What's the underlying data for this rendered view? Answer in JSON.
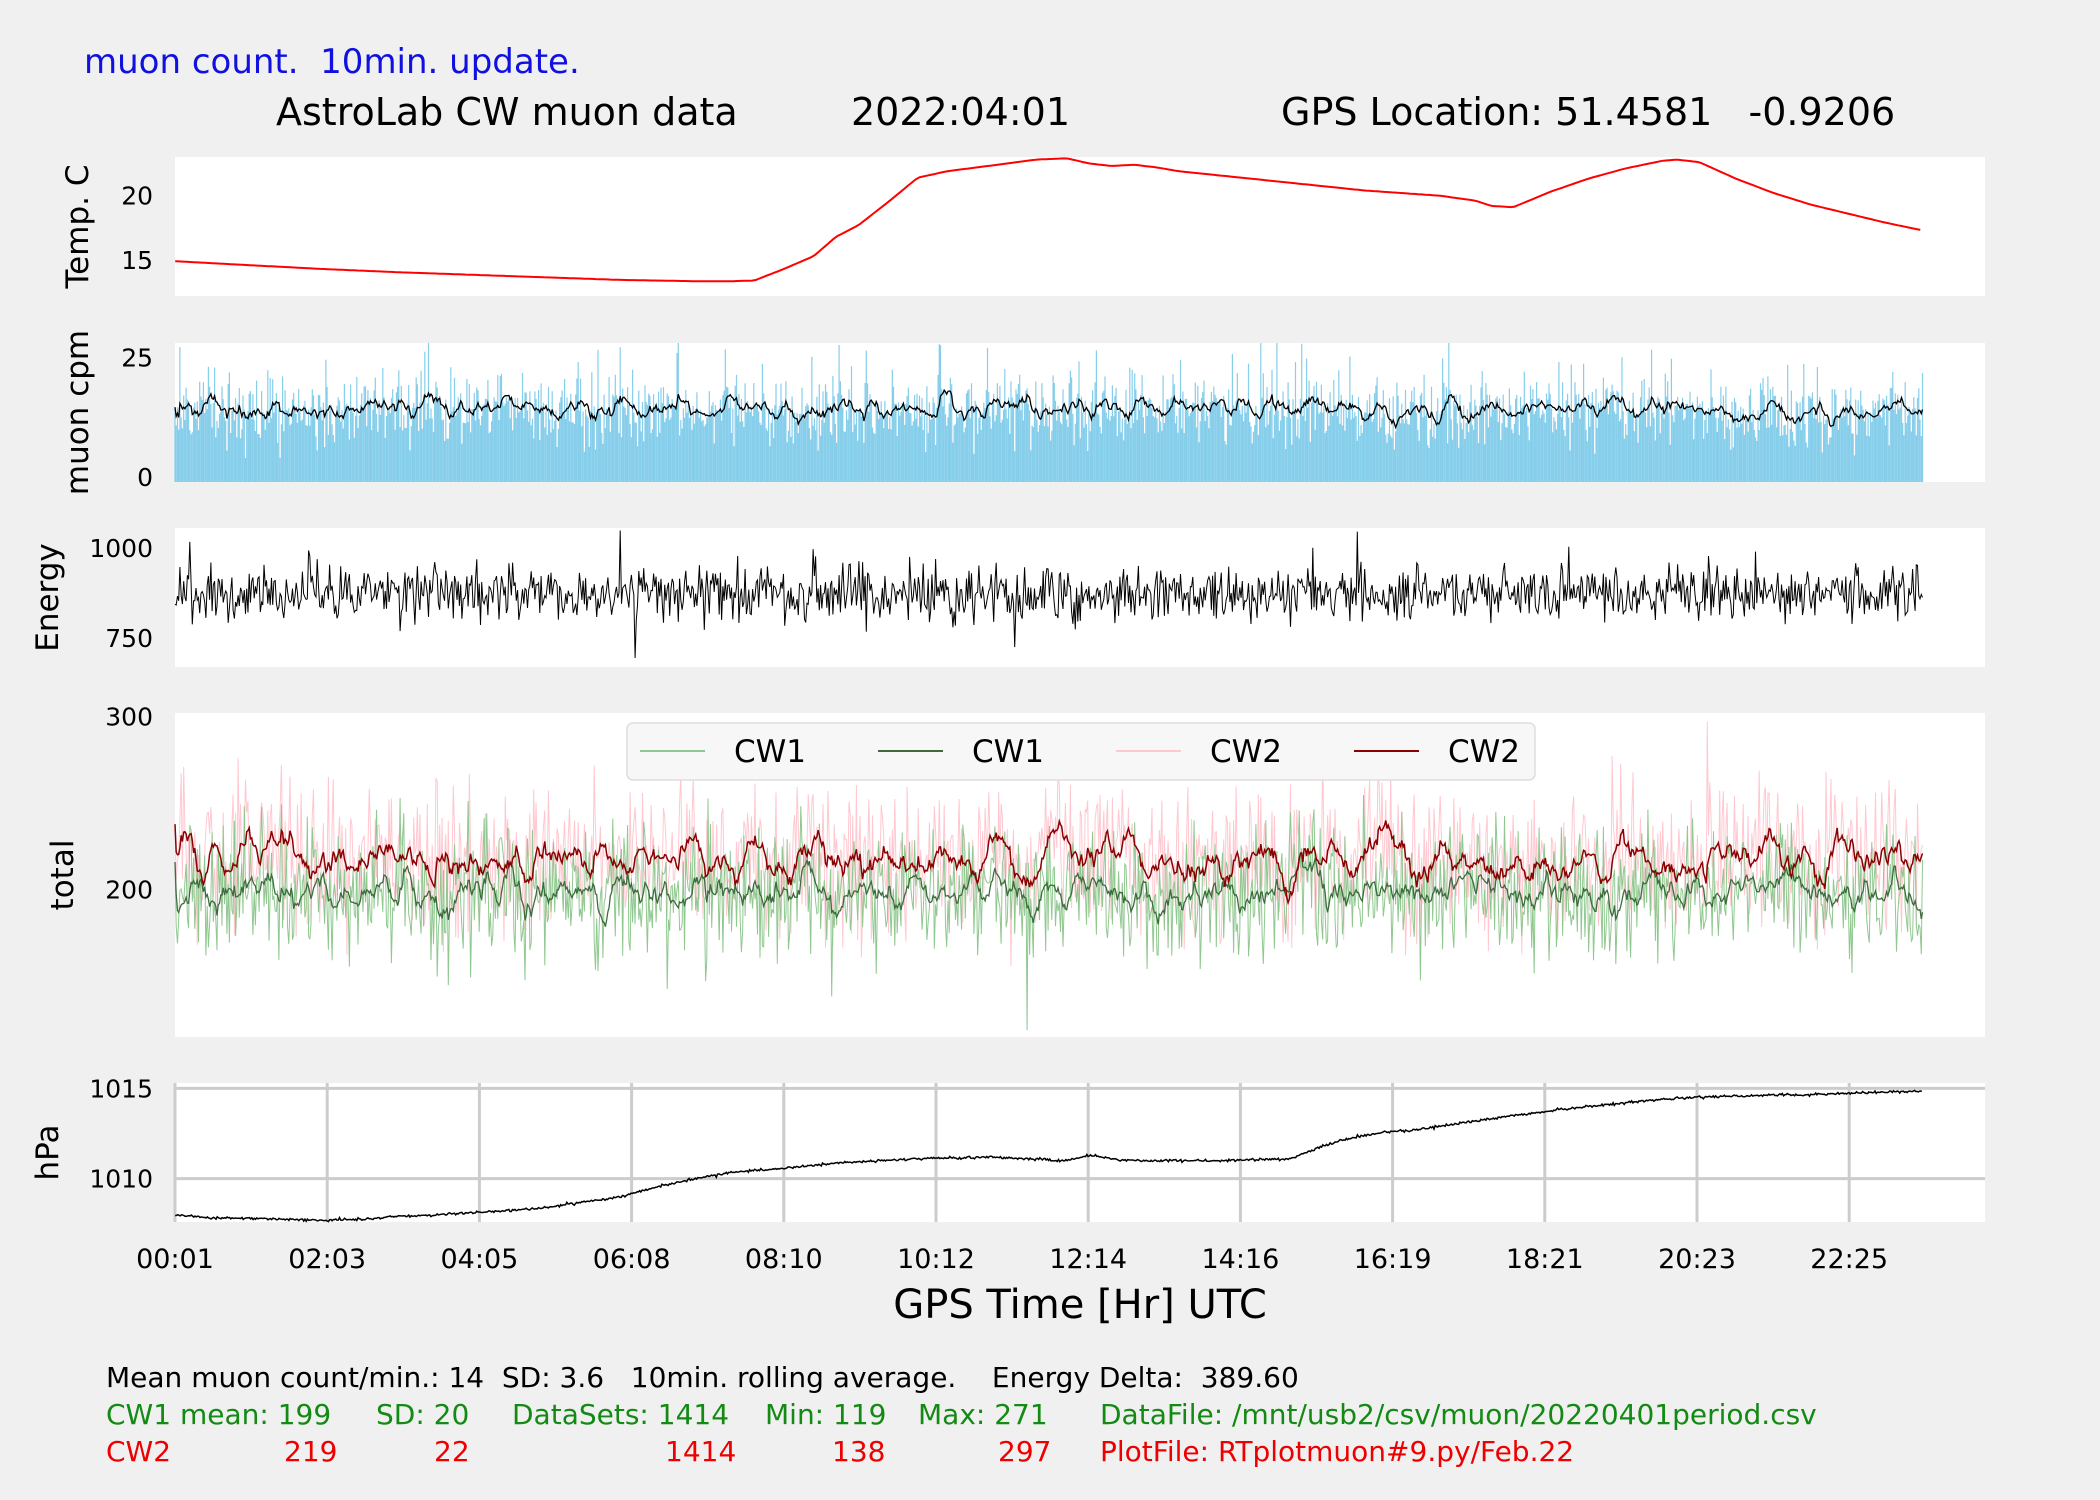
{
  "header": {
    "update_note": "muon count.  10min. update.",
    "title_source": "AstroLab CW muon data",
    "title_date": "2022:04:01",
    "title_gps": "GPS Location: 51.4581   -0.9206"
  },
  "xaxis": {
    "label": "GPS Time  [Hr] UTC",
    "ticks": [
      "00:01",
      "02:03",
      "04:05",
      "06:08",
      "08:10",
      "10:12",
      "12:14",
      "14:16",
      "16:19",
      "18:21",
      "20:23",
      "22:25"
    ]
  },
  "footer": {
    "summary": "Mean muon count/min.: 14  SD: 3.6   10min. rolling average.    Energy Delta:  389.60",
    "cw1": {
      "label": "CW1 mean: 199",
      "sd": "SD: 20",
      "datasets": "DataSets: 1414",
      "min": "Min: 119",
      "max": "Max: 271",
      "file": "DataFile: /mnt/usb2/csv/muon/20220401period.csv"
    },
    "cw2": {
      "label": "CW2",
      "mean": "219",
      "sd": "22",
      "datasets": "1414",
      "min": "138",
      "max": "297",
      "file": "PlotFile: RTplotmuon#9.py/Feb.22"
    }
  },
  "colors": {
    "temp": "#ff0000",
    "cpm_bars": "#87ceeb",
    "black": "#000000",
    "cw1_raw": "#90c890",
    "cw1_avg": "#3d6b3d",
    "cw2_raw": "#ffc8d0",
    "cw2_avg": "#8b0000",
    "header_blue": "#1010e0",
    "green": "#138a13",
    "red": "#ee0000"
  },
  "chart_data": [
    {
      "type": "line",
      "id": "temperature",
      "ylabel": "Temp. C",
      "yticks": [
        "15",
        "20"
      ],
      "ylim": [
        12.2,
        23
      ],
      "x_range_hours": [
        0.0167,
        23.5
      ],
      "series": [
        {
          "name": "temperature",
          "color": "#ff0000",
          "x": [
            0.02,
            1,
            2,
            3,
            4,
            5,
            6,
            6.5,
            7,
            7.5,
            7.8,
            8.2,
            8.6,
            8.9,
            9.2,
            9.6,
            10,
            10.4,
            10.8,
            11.2,
            11.6,
            12,
            12.3,
            12.6,
            12.9,
            13.2,
            13.5,
            14,
            15,
            16,
            17,
            17.5,
            17.7,
            18,
            18.5,
            19,
            19.5,
            20,
            20.2,
            20.5,
            21,
            21.5,
            22,
            22.5,
            23,
            23.5
          ],
          "y": [
            14.9,
            14.6,
            14.3,
            14.05,
            13.85,
            13.65,
            13.45,
            13.4,
            13.35,
            13.35,
            13.4,
            14.3,
            15.3,
            16.8,
            17.7,
            19.5,
            21.4,
            21.9,
            22.2,
            22.5,
            22.8,
            22.9,
            22.5,
            22.3,
            22.4,
            22.2,
            21.9,
            21.6,
            21.0,
            20.4,
            20.0,
            19.6,
            19.2,
            19.1,
            20.3,
            21.3,
            22.1,
            22.7,
            22.8,
            22.6,
            21.3,
            20.2,
            19.3,
            18.6,
            17.9,
            17.3
          ]
        }
      ]
    },
    {
      "type": "bar+line",
      "id": "muon_cpm",
      "ylabel": "muon cpm",
      "yticks": [
        "0",
        "25"
      ],
      "ylim": [
        -1,
        28
      ],
      "series": [
        {
          "name": "muon count/min",
          "color": "#87ceeb",
          "mean": 14,
          "sd": 3.6
        },
        {
          "name": "10min. rolling average",
          "color": "#000000",
          "mean": 14
        }
      ]
    },
    {
      "type": "line",
      "id": "energy",
      "ylabel": "Energy",
      "yticks": [
        "750",
        "1000"
      ],
      "ylim": [
        670,
        1055
      ],
      "series": [
        {
          "name": "energy",
          "color": "#000000",
          "mean": 875,
          "spikes": [
            {
              "x": 6.0,
              "y": 1048
            },
            {
              "x": 6.2,
              "y": 695
            },
            {
              "x": 15.9,
              "y": 1045
            },
            {
              "x": 11.3,
              "y": 725
            }
          ]
        }
      ]
    },
    {
      "type": "line",
      "id": "total",
      "ylabel": "total",
      "yticks": [
        "200",
        "300"
      ],
      "ylim": [
        115,
        302
      ],
      "series": [
        {
          "name": "CW1",
          "color": "#90c890",
          "mean": 199,
          "sd": 20,
          "min": 119,
          "max": 271
        },
        {
          "name": "CW1",
          "color": "#3d6b3d",
          "mean": 199
        },
        {
          "name": "CW2",
          "color": "#ffc8d0",
          "mean": 219,
          "sd": 22,
          "min": 138,
          "max": 297
        },
        {
          "name": "CW2",
          "color": "#8b0000",
          "mean": 219
        }
      ]
    },
    {
      "type": "line",
      "id": "pressure",
      "ylabel": "hPa",
      "yticks": [
        "1010",
        "1015"
      ],
      "ylim": [
        1007.6,
        1015.3
      ],
      "series": [
        {
          "name": "pressure",
          "color": "#000000",
          "x": [
            0.02,
            0.5,
            1,
            1.5,
            2,
            2.5,
            3,
            4,
            5,
            6,
            6.5,
            7,
            7.5,
            8,
            9,
            10,
            11,
            12,
            12.3,
            12.7,
            13,
            14,
            15,
            15.5,
            16,
            16.3,
            16.6,
            17,
            18,
            19,
            20,
            21,
            22,
            23,
            23.5
          ],
          "y": [
            1008.0,
            1007.85,
            1007.8,
            1007.75,
            1007.7,
            1007.75,
            1007.9,
            1008.1,
            1008.4,
            1009.0,
            1009.55,
            1010.0,
            1010.35,
            1010.5,
            1010.9,
            1011.1,
            1011.2,
            1011.0,
            1011.3,
            1011.05,
            1011.0,
            1011.0,
            1011.1,
            1011.9,
            1012.4,
            1012.6,
            1012.65,
            1012.9,
            1013.5,
            1014.0,
            1014.4,
            1014.6,
            1014.65,
            1014.8,
            1014.85
          ]
        }
      ]
    }
  ]
}
